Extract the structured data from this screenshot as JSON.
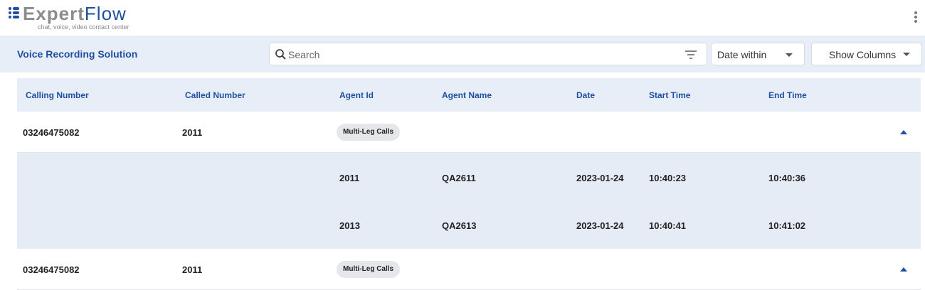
{
  "brand": {
    "name_part1": "Expert",
    "name_part2": "Flow",
    "tagline": "chat, voice, video contact center"
  },
  "toolbar": {
    "title": "Voice Recording Solution",
    "search_placeholder": "Search",
    "date_filter": "Date within",
    "show_columns": "Show Columns"
  },
  "table": {
    "columns": [
      "Calling Number",
      "Called Number",
      "Agent Id",
      "Agent Name",
      "Date",
      "Start Time",
      "End Time"
    ],
    "rows": [
      {
        "calling": "03246475082",
        "called": "2011",
        "badge": "Multi-Leg Calls",
        "expanded": true,
        "legs": [
          {
            "agent_id": "2011",
            "agent_name": "QA2611",
            "date": "2023-01-24",
            "start": "10:40:23",
            "end": "10:40:36"
          },
          {
            "agent_id": "2013",
            "agent_name": "QA2613",
            "date": "2023-01-24",
            "start": "10:40:41",
            "end": "10:41:02"
          }
        ]
      },
      {
        "calling": "03246475082",
        "called": "2011",
        "badge": "Multi-Leg Calls",
        "expanded": true
      }
    ]
  },
  "colors": {
    "accent": "#1f4fa0",
    "band": "#e8eef7"
  }
}
